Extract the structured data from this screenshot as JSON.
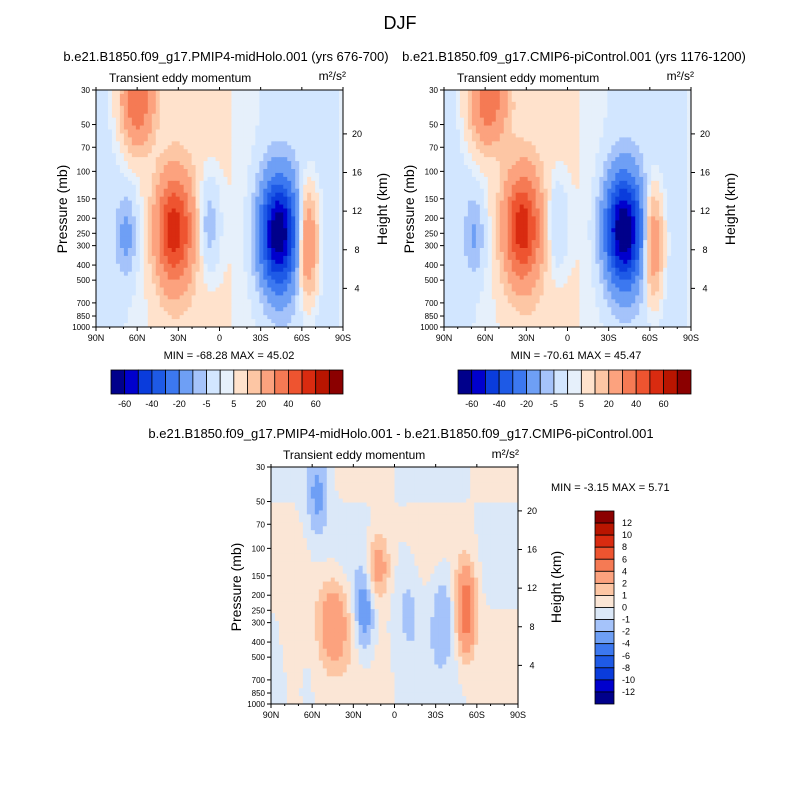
{
  "figure_title": "DJF",
  "colors": {
    "blues": [
      "#00008b",
      "#0000cd",
      "#0a3cdc",
      "#1e5ae6",
      "#3c78f0",
      "#6e9ff5",
      "#a5c3fa",
      "#d2e6ff"
    ],
    "reds": [
      "#ffe2cc",
      "#fdc6a4",
      "#fca27e",
      "#f57a54",
      "#ee5430",
      "#d92b10",
      "#b91500",
      "#8b0000"
    ]
  },
  "chart_data": [
    {
      "type": "contour",
      "title": "b.e21.B1850.f09_g17.PMIP4-midHolo.001 (yrs 676-700)",
      "left_label": "Transient eddy momentum",
      "right_label": "m²/s²",
      "xlabel": "",
      "ylabel": "Pressure (mb)",
      "ylabel_right": "Height (km)",
      "x_ticks": [
        "90N",
        "60N",
        "30N",
        "0",
        "30S",
        "60S",
        "90S"
      ],
      "x_range": [
        90,
        -90
      ],
      "y_ticks": [
        30,
        50,
        70,
        100,
        150,
        200,
        250,
        300,
        400,
        500,
        700,
        850,
        1000
      ],
      "y_range": [
        30,
        1000
      ],
      "y_scale": "log",
      "height_ticks": [
        20,
        16,
        12,
        8,
        4
      ],
      "stats": "MIN = -68.28   MAX =  45.02",
      "levels": [
        -60,
        -50,
        -40,
        -30,
        -20,
        -10,
        -5,
        -1,
        1,
        5,
        10,
        20,
        30,
        40,
        50,
        60
      ],
      "labelbar_labels": [
        "-60",
        "-40",
        "-20",
        "-5",
        "5",
        "20",
        "40",
        "60"
      ],
      "features": [
        {
          "lat": 33,
          "p": 240,
          "amp": 45,
          "wlat": 9,
          "wp": 0.55
        },
        {
          "lat": -43,
          "p": 250,
          "amp": -68,
          "wlat": 9,
          "wp": 0.55
        },
        {
          "lat": -64,
          "p": 290,
          "amp": 24,
          "wlat": 5,
          "wp": 0.55
        },
        {
          "lat": 60,
          "p": 35,
          "amp": 30,
          "wlat": 8,
          "wp": 0.45
        },
        {
          "lat": 68,
          "p": 260,
          "amp": -12,
          "wlat": 5,
          "wp": 0.4
        },
        {
          "lat": 8,
          "p": 220,
          "amp": -10,
          "wlat": 6,
          "wp": 0.5
        }
      ]
    },
    {
      "type": "contour",
      "title": "b.e21.B1850.f09_g17.CMIP6-piControl.001 (yrs 1176-1200)",
      "left_label": "Transient eddy momentum",
      "right_label": "m²/s²",
      "xlabel": "",
      "ylabel": "Pressure (mb)",
      "ylabel_right": "Height (km)",
      "x_ticks": [
        "90N",
        "60N",
        "30N",
        "0",
        "30S",
        "60S",
        "90S"
      ],
      "x_range": [
        90,
        -90
      ],
      "y_ticks": [
        30,
        50,
        70,
        100,
        150,
        200,
        250,
        300,
        400,
        500,
        700,
        850,
        1000
      ],
      "y_range": [
        30,
        1000
      ],
      "y_scale": "log",
      "height_ticks": [
        20,
        16,
        12,
        8,
        4
      ],
      "stats": "MIN = -70.61   MAX =  45.47",
      "levels": [
        -60,
        -50,
        -40,
        -30,
        -20,
        -10,
        -5,
        -1,
        1,
        5,
        10,
        20,
        30,
        40,
        50,
        60
      ],
      "labelbar_labels": [
        "-60",
        "-40",
        "-20",
        "-5",
        "5",
        "20",
        "40",
        "60"
      ],
      "features": [
        {
          "lat": 33,
          "p": 230,
          "amp": 45,
          "wlat": 9,
          "wp": 0.55
        },
        {
          "lat": -41,
          "p": 240,
          "amp": -70,
          "wlat": 9,
          "wp": 0.55
        },
        {
          "lat": -62,
          "p": 290,
          "amp": 22,
          "wlat": 5,
          "wp": 0.55
        },
        {
          "lat": 58,
          "p": 35,
          "amp": 28,
          "wlat": 9,
          "wp": 0.45
        },
        {
          "lat": 68,
          "p": 260,
          "amp": -10,
          "wlat": 5,
          "wp": 0.4
        },
        {
          "lat": 8,
          "p": 220,
          "amp": -8,
          "wlat": 6,
          "wp": 0.5
        }
      ]
    },
    {
      "type": "contour",
      "title": "b.e21.B1850.f09_g17.PMIP4-midHolo.001 - b.e21.B1850.f09_g17.CMIP6-piControl.001",
      "left_label": "Transient eddy momentum",
      "right_label": "m²/s²",
      "xlabel": "",
      "ylabel": "Pressure (mb)",
      "ylabel_right": "Height (km)",
      "x_ticks": [
        "90N",
        "60N",
        "30N",
        "0",
        "30S",
        "60S",
        "90S"
      ],
      "x_range": [
        90,
        -90
      ],
      "y_ticks": [
        30,
        50,
        70,
        100,
        150,
        200,
        250,
        300,
        400,
        500,
        700,
        850,
        1000
      ],
      "y_range": [
        30,
        1000
      ],
      "y_scale": "log",
      "height_ticks": [
        20,
        16,
        12,
        8,
        4
      ],
      "stats": "MIN =  -3.15   MAX =   5.71",
      "levels": [
        -12,
        -10,
        -8,
        -6,
        -4,
        -2,
        -1,
        0,
        1,
        2,
        4,
        6,
        8,
        10,
        12
      ],
      "labelbar_labels": [
        "12",
        "10",
        "8",
        "6",
        "4",
        "2",
        "1",
        "0",
        "-1",
        "-2",
        "-4",
        "-6",
        "-8",
        "-10",
        "-12"
      ],
      "features": [
        {
          "lat": -52,
          "p": 250,
          "amp": 5.7,
          "wlat": 5,
          "wp": 0.45
        },
        {
          "lat": 45,
          "p": 300,
          "amp": 3.5,
          "wlat": 8,
          "wp": 0.45
        },
        {
          "lat": 12,
          "p": 130,
          "amp": 3.2,
          "wlat": 6,
          "wp": 0.35
        },
        {
          "lat": 22,
          "p": 260,
          "amp": -3.1,
          "wlat": 5,
          "wp": 0.45
        },
        {
          "lat": 56,
          "p": 45,
          "amp": -2.4,
          "wlat": 6,
          "wp": 0.45
        },
        {
          "lat": -35,
          "p": 250,
          "amp": -1.8,
          "wlat": 6,
          "wp": 0.5
        },
        {
          "lat": -10,
          "p": 230,
          "amp": -1.3,
          "wlat": 7,
          "wp": 0.5
        },
        {
          "lat": 75,
          "p": 350,
          "amp": 1.2,
          "wlat": 6,
          "wp": 0.6
        }
      ]
    }
  ]
}
